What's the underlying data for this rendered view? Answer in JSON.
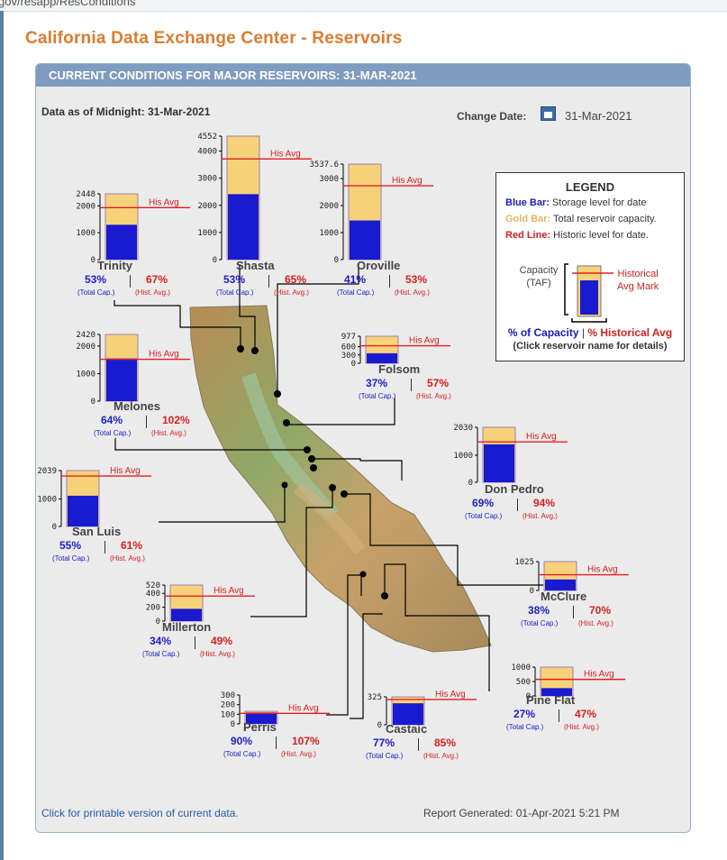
{
  "browser": {
    "url_fragment": "gov/resapp/ResConditions"
  },
  "page": {
    "title": "California Data Exchange Center - Reservoirs",
    "panel_header": "CURRENT CONDITIONS FOR MAJOR RESERVOIRS: 31-MAR-2021",
    "data_as_of": "Data as of Midnight: 31-Mar-2021",
    "change_date_label": "Change Date:",
    "change_date_value": "31-Mar-2021",
    "printable_link": "Click for printable version of current data.",
    "report_generated": "Report Generated: 01-Apr-2021 5:21 PM"
  },
  "legend": {
    "title": "LEGEND",
    "blue_bar_label": "Blue Bar:",
    "blue_bar_text": " Storage level for date",
    "gold_bar_label": "Gold Bar:",
    "gold_bar_text": " Total reservoir capacity.",
    "red_line_label": "Red Line:",
    "red_line_text": " Historic level for date.",
    "capacity_label_1": "Capacity",
    "capacity_label_2": "(TAF)",
    "hist_mark_1": "Historical",
    "hist_mark_2": "Avg Mark",
    "pct_capacity": "% of Capacity",
    "pct_hist": "% Historical Avg",
    "click_note": "(Click reservoir name for details)",
    "colors": {
      "blue": "#1a1ad0",
      "gold": "#f8d27a",
      "red": "#e02020"
    }
  },
  "labels": {
    "his_avg": "His Avg",
    "total_cap": "(Total Cap.)",
    "hist_avg": "(Hist. Avg.)"
  },
  "chart_data": {
    "type": "bar",
    "units": "TAF",
    "reservoirs": [
      {
        "name": "Trinity",
        "capacity": 2448,
        "storage": 1296,
        "hist_avg": 1934,
        "pct_capacity": "53%",
        "pct_hist": "67%",
        "ticks": [
          "2448",
          "2000",
          "1000",
          "0"
        ]
      },
      {
        "name": "Shasta",
        "capacity": 4552,
        "storage": 2413,
        "hist_avg": 3712,
        "pct_capacity": "53%",
        "pct_hist": "65%",
        "ticks": [
          "4552",
          "4000",
          "3000",
          "2000",
          "1000",
          "0"
        ]
      },
      {
        "name": "Oroville",
        "capacity": 3537.6,
        "storage": 1450,
        "hist_avg": 2736,
        "pct_capacity": "41%",
        "pct_hist": "53%",
        "ticks": [
          "3537.6",
          "3000",
          "2000",
          "1000",
          "0"
        ]
      },
      {
        "name": "Melones",
        "capacity": 2420,
        "storage": 1549,
        "hist_avg": 1518,
        "pct_capacity": "64%",
        "pct_hist": "102%",
        "ticks": [
          "2420",
          "2000",
          "1000",
          "0"
        ]
      },
      {
        "name": "Folsom",
        "capacity": 977,
        "storage": 361,
        "hist_avg": 634,
        "pct_capacity": "37%",
        "pct_hist": "57%",
        "ticks": [
          "977",
          "600",
          "300",
          "0"
        ]
      },
      {
        "name": "Don Pedro",
        "capacity": 2030,
        "storage": 1401,
        "hist_avg": 1490,
        "pct_capacity": "69%",
        "pct_hist": "94%",
        "ticks": [
          "2030",
          "1000",
          "0"
        ]
      },
      {
        "name": "San Luis",
        "capacity": 2039,
        "storage": 1121,
        "hist_avg": 1838,
        "pct_capacity": "55%",
        "pct_hist": "61%",
        "ticks": [
          "2039",
          "1000",
          "0"
        ]
      },
      {
        "name": "McClure",
        "capacity": 1025,
        "storage": 390,
        "hist_avg": 557,
        "pct_capacity": "38%",
        "pct_hist": "70%",
        "ticks": [
          "1025",
          "0"
        ]
      },
      {
        "name": "Millerton",
        "capacity": 520,
        "storage": 177,
        "hist_avg": 361,
        "pct_capacity": "34%",
        "pct_hist": "49%",
        "ticks": [
          "520",
          "400",
          "200",
          "0"
        ]
      },
      {
        "name": "Pine Flat",
        "capacity": 1000,
        "storage": 270,
        "hist_avg": 574,
        "pct_capacity": "27%",
        "pct_hist": "47%",
        "ticks": [
          "1000",
          "500",
          "0"
        ]
      },
      {
        "name": "Perris",
        "capacity": 131,
        "storage": 118,
        "hist_avg": 110,
        "pct_capacity": "90%",
        "pct_hist": "107%",
        "ticks": [
          "300",
          "200",
          "100",
          "0"
        ]
      },
      {
        "name": "Castaic",
        "capacity": 325,
        "storage": 250,
        "hist_avg": 294,
        "pct_capacity": "77%",
        "pct_hist": "85%",
        "ticks": [
          "325",
          "0"
        ]
      }
    ]
  }
}
